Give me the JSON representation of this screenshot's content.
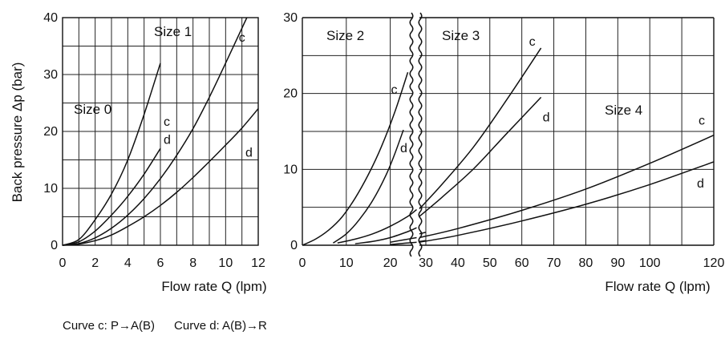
{
  "legend": {
    "curve_c": "Curve c: P→A(B)",
    "curve_d": "Curve d: A(B)→R"
  },
  "chart_data": [
    {
      "type": "line",
      "xlabel": "Flow rate Q (lpm)",
      "ylabel": "Back pressure  Δp (bar)",
      "xlim": [
        0,
        12
      ],
      "ylim": [
        0,
        40
      ],
      "x_ticks": [
        "0",
        "2",
        "4",
        "6",
        "8",
        "10",
        "12"
      ],
      "y_ticks": [
        "0",
        "10",
        "20",
        "30",
        "40"
      ],
      "grid": true,
      "annotations": [
        "Size 0",
        "Size 1"
      ],
      "series": [
        {
          "name": "c",
          "group": "Size 0",
          "x": [
            0,
            1,
            2,
            3,
            4,
            5,
            6
          ],
          "y": [
            0,
            1.0,
            4.5,
            9.0,
            15.0,
            23.0,
            32.0
          ]
        },
        {
          "name": "d",
          "group": "Size 0",
          "x": [
            0,
            1,
            2,
            3,
            4,
            5,
            6
          ],
          "y": [
            0,
            0.6,
            2.5,
            5.3,
            8.6,
            12.5,
            17.0
          ]
        },
        {
          "name": "c",
          "group": "Size 1",
          "x": [
            0,
            1,
            2,
            3,
            4,
            5,
            6,
            7,
            8,
            9,
            10,
            11.3
          ],
          "y": [
            0,
            0.3,
            1.3,
            3.0,
            5.3,
            8.2,
            11.7,
            15.8,
            20.5,
            26.0,
            32.0,
            40.0
          ]
        },
        {
          "name": "d",
          "group": "Size 1",
          "x": [
            0,
            1,
            2,
            3,
            4,
            5,
            6,
            7,
            8,
            9,
            10,
            11,
            12
          ],
          "y": [
            0,
            0.2,
            0.8,
            1.8,
            3.3,
            5.0,
            7.0,
            9.3,
            11.9,
            14.7,
            17.6,
            20.6,
            24.0
          ]
        }
      ]
    },
    {
      "type": "line",
      "xlabel": "",
      "ylabel": "",
      "xlim": [
        0,
        25
      ],
      "ylim": [
        0,
        30
      ],
      "x_ticks": [
        "0",
        "10",
        "20"
      ],
      "y_ticks": [
        "0",
        "10",
        "20",
        "30"
      ],
      "grid": true,
      "annotations": [
        "Size 2"
      ],
      "series": [
        {
          "name": "c",
          "group": "Size 2",
          "x": [
            0,
            3,
            6,
            9,
            12,
            15,
            18,
            21,
            24
          ],
          "y": [
            0,
            0.8,
            2.0,
            3.7,
            6.2,
            9.3,
            13.0,
            17.5,
            22.8
          ]
        },
        {
          "name": "d",
          "group": "Size 2",
          "x": [
            7,
            10,
            13,
            16,
            19,
            21,
            23
          ],
          "y": [
            0.3,
            1.5,
            3.4,
            5.9,
            9.2,
            12.0,
            15.2
          ]
        },
        {
          "name": "c",
          "group": "Size 3",
          "x": [
            8,
            12,
            16,
            20,
            24,
            26
          ],
          "y": [
            0.3,
            0.8,
            1.5,
            2.5,
            3.8,
            4.7
          ]
        },
        {
          "name": "d",
          "group": "Size 3",
          "x": [
            12,
            16,
            20,
            24,
            26
          ],
          "y": [
            0.2,
            0.5,
            1.0,
            1.8,
            2.3
          ]
        },
        {
          "name": "",
          "group": "Size 4",
          "x": [
            20,
            23,
            26
          ],
          "y": [
            0.4,
            0.7,
            1.0
          ]
        },
        {
          "name": "",
          "group": "Size 4",
          "x": [
            20,
            23,
            26
          ],
          "y": [
            0.1,
            0.25,
            0.4
          ]
        }
      ]
    },
    {
      "type": "line",
      "xlabel": "Flow rate Q (lpm)",
      "ylabel": "",
      "xlim": [
        28,
        120
      ],
      "ylim": [
        0,
        30
      ],
      "x_ticks": [
        "30",
        "40",
        "50",
        "60",
        "70",
        "80",
        "90",
        "100",
        "120"
      ],
      "grid": true,
      "annotations": [
        "Size 3",
        "Size 4"
      ],
      "series": [
        {
          "name": "c",
          "group": "Size 3",
          "x": [
            28,
            35,
            45,
            55,
            66
          ],
          "y": [
            4.8,
            8.0,
            13.0,
            19.0,
            26.0
          ]
        },
        {
          "name": "d",
          "group": "Size 3",
          "x": [
            28,
            35,
            45,
            55,
            66
          ],
          "y": [
            3.8,
            6.3,
            10.1,
            14.6,
            19.5
          ]
        },
        {
          "name": "c",
          "group": "Size 4",
          "x": [
            28,
            40,
            60,
            80,
            100,
            120
          ],
          "y": [
            1.0,
            2.2,
            4.6,
            7.4,
            10.8,
            14.5
          ]
        },
        {
          "name": "d",
          "group": "Size 4",
          "x": [
            28,
            40,
            60,
            80,
            100,
            120
          ],
          "y": [
            0.4,
            1.3,
            3.2,
            5.4,
            8.0,
            11.0
          ]
        },
        {
          "name": "",
          "group": "Size 2",
          "x": [
            28,
            30
          ],
          "y": [
            1.5,
            1.7
          ]
        },
        {
          "name": "",
          "group": "Size 2",
          "x": [
            28,
            30
          ],
          "y": [
            0.5,
            0.6
          ]
        }
      ]
    }
  ]
}
